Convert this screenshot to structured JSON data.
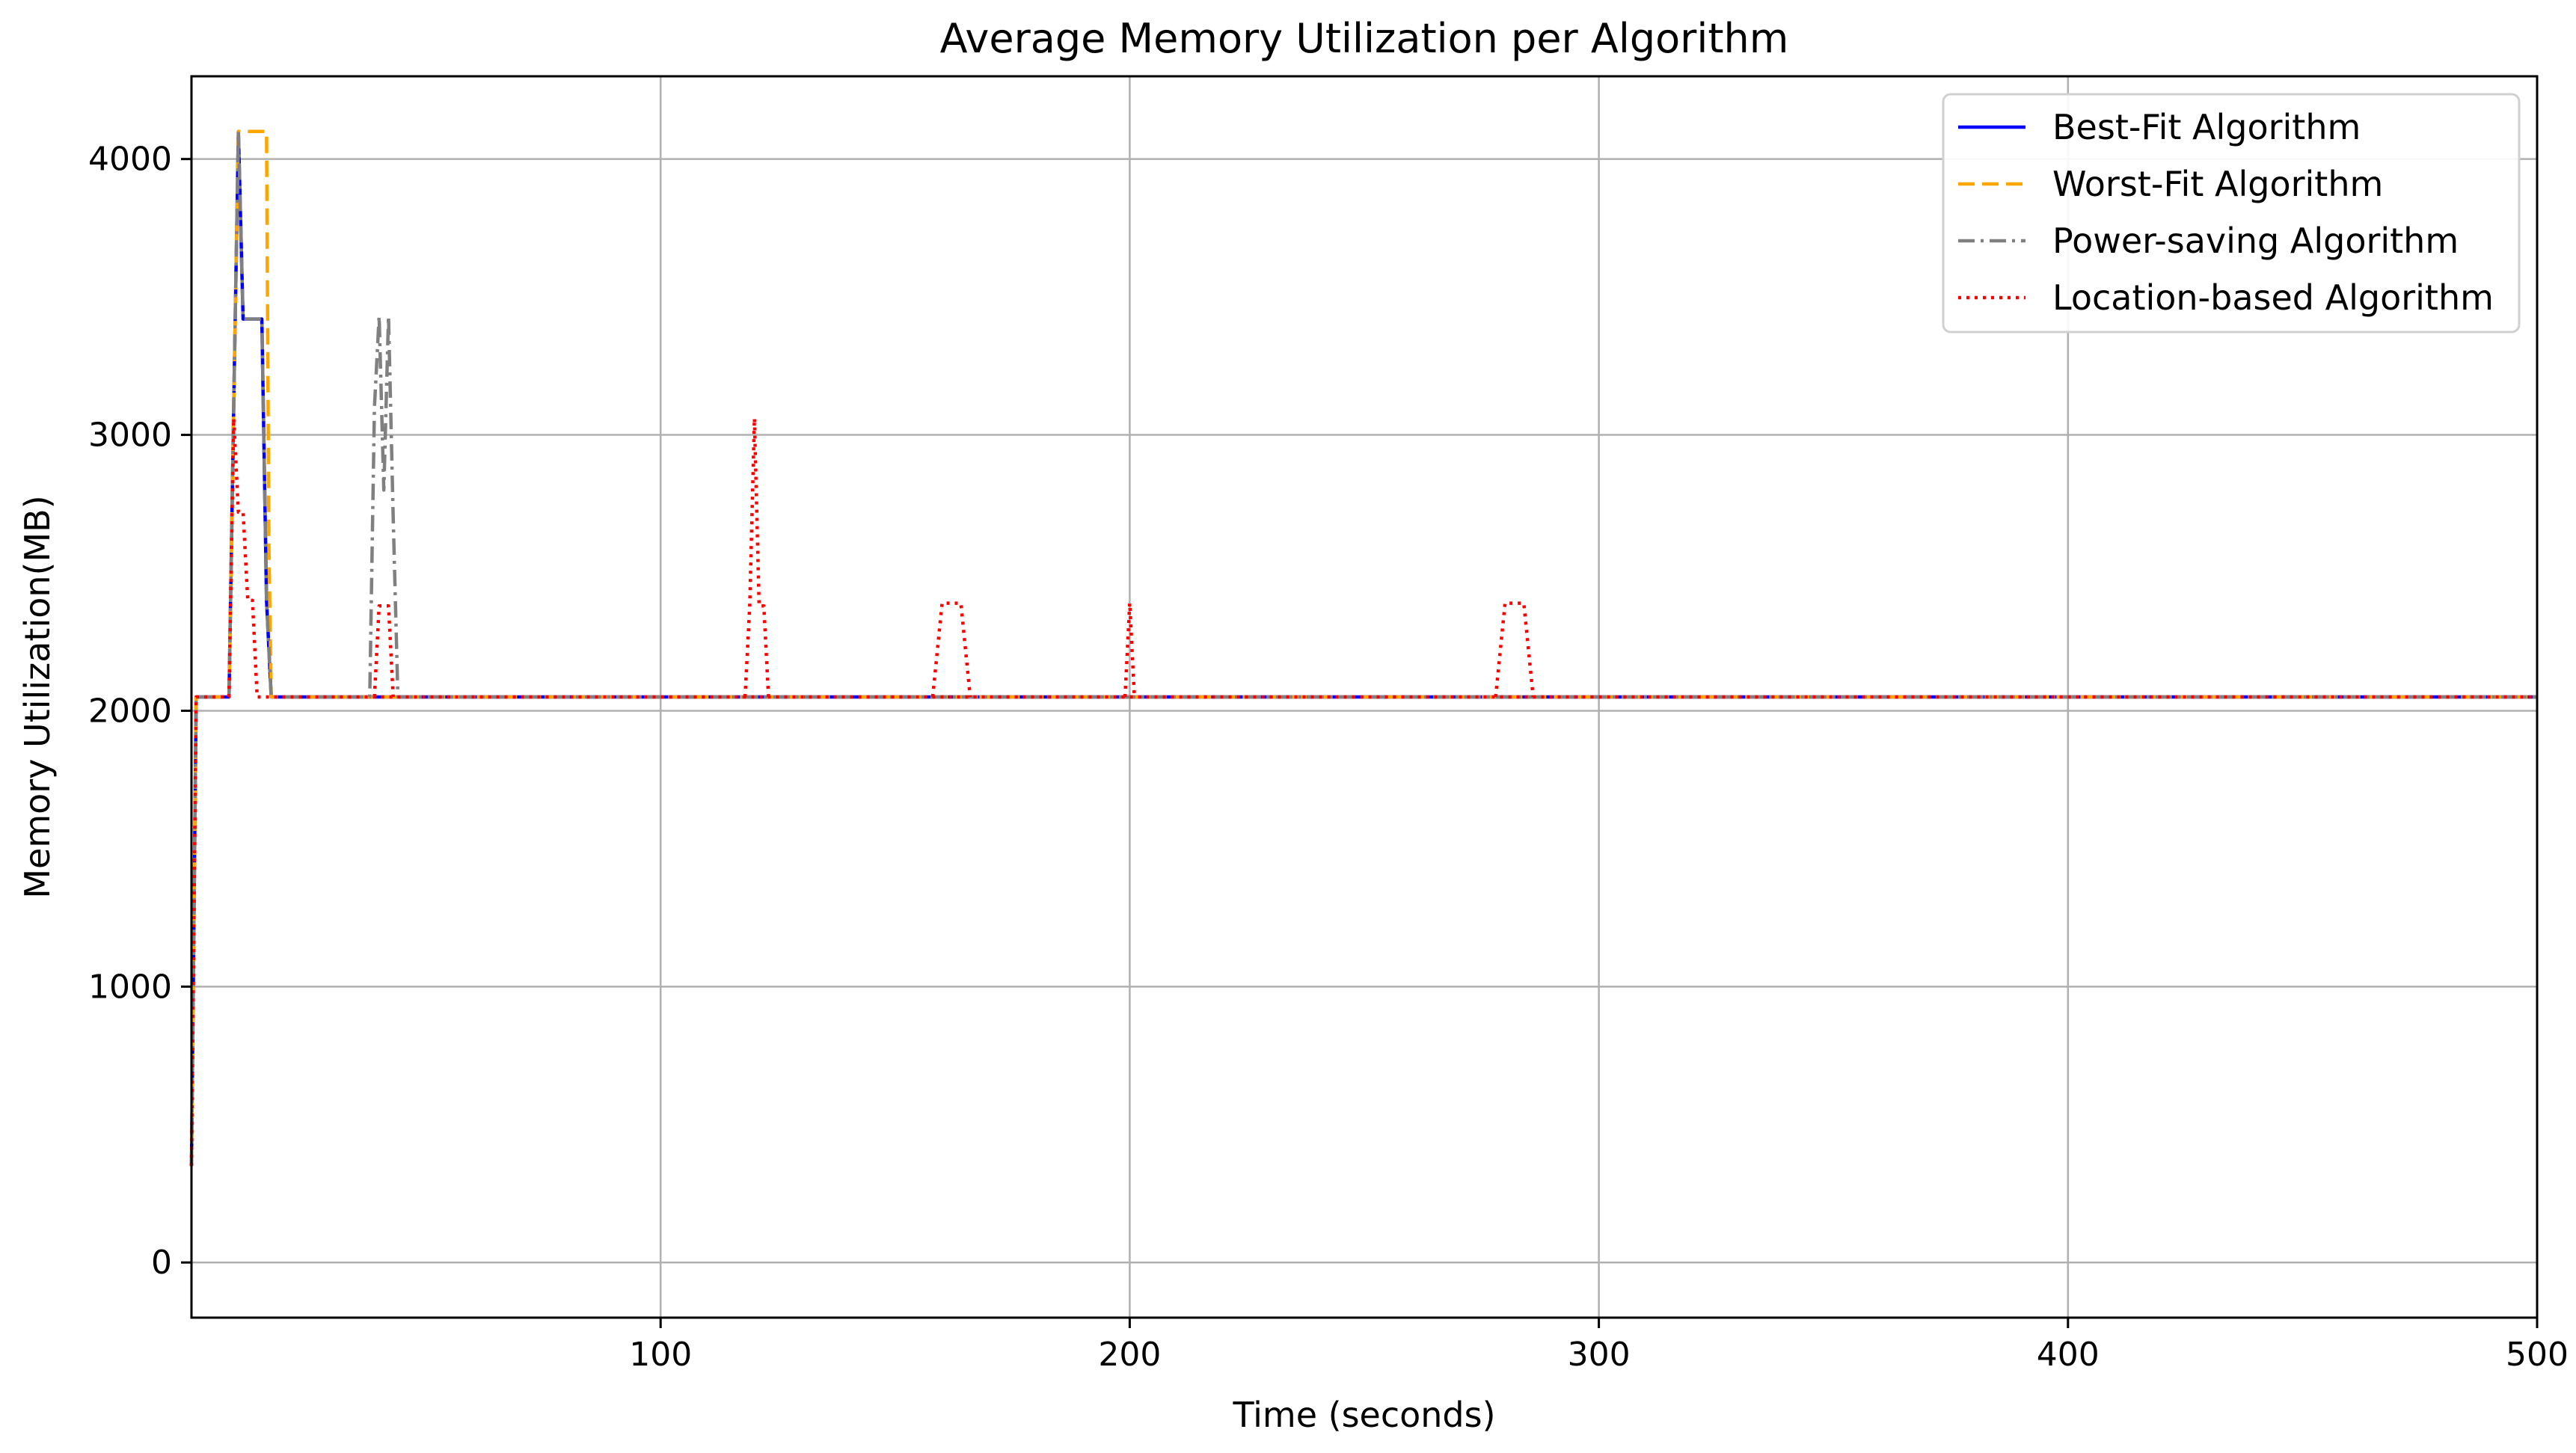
{
  "chart_data": {
    "type": "line",
    "title": "Average Memory Utilization per Algorithm",
    "xlabel": "Time (seconds)",
    "ylabel": "Memory Utilization(MB)",
    "xlim": [
      0,
      500
    ],
    "ylim": [
      -200,
      4300
    ],
    "xticks": [
      100,
      200,
      300,
      400,
      500
    ],
    "yticks": [
      0,
      1000,
      2000,
      3000,
      4000
    ],
    "grid": true,
    "legend_position": "top-right",
    "series": [
      {
        "name": "Best-Fit Algorithm",
        "color": "#0000ff",
        "style": "solid",
        "x": [
          0,
          1,
          8,
          9,
          10,
          11,
          15,
          16,
          17,
          500
        ],
        "y": [
          350,
          2050,
          2050,
          3100,
          4100,
          3420,
          3420,
          2400,
          2050,
          2050
        ]
      },
      {
        "name": "Worst-Fit Algorithm",
        "color": "#ffa500",
        "style": "dashed",
        "x": [
          0,
          1,
          8,
          9,
          10,
          16,
          16.5,
          17,
          500
        ],
        "y": [
          350,
          2050,
          2050,
          3100,
          4100,
          4100,
          2600,
          2050,
          2050
        ]
      },
      {
        "name": "Power-saving Algorithm",
        "color": "#808080",
        "style": "dashdot",
        "x": [
          0,
          1,
          8,
          9,
          10,
          11,
          15,
          16,
          17,
          38,
          39,
          40,
          41,
          42,
          43,
          44,
          500
        ],
        "y": [
          350,
          2050,
          2050,
          3100,
          4100,
          3420,
          3420,
          2400,
          2050,
          2050,
          3100,
          3430,
          2800,
          3430,
          2700,
          2050,
          2050
        ]
      },
      {
        "name": "Location-based Algorithm",
        "color": "#ff0000",
        "style": "dotted",
        "x": [
          0,
          1,
          8,
          9,
          10,
          11,
          12,
          13,
          14,
          15,
          500
        ],
        "y": [
          350,
          2050,
          2050,
          3060,
          2720,
          2720,
          2400,
          2400,
          2050,
          2050,
          2050
        ],
        "peaks": [
          {
            "x": [
              39,
              40,
              41,
              42,
              43
            ],
            "y": [
              2050,
              2380,
              2380,
              2380,
              2050
            ]
          },
          {
            "x": [
              118,
              119,
              120,
              121,
              122,
              123
            ],
            "y": [
              2050,
              2380,
              3060,
              2380,
              2380,
              2050
            ]
          },
          {
            "x": [
              158,
              160,
              164,
              166
            ],
            "y": [
              2050,
              2390,
              2390,
              2050
            ]
          },
          {
            "x": [
              199,
              200,
              201
            ],
            "y": [
              2050,
              2390,
              2050
            ]
          },
          {
            "x": [
              278,
              280,
              284,
              286
            ],
            "y": [
              2050,
              2390,
              2390,
              2050
            ]
          }
        ]
      }
    ]
  }
}
